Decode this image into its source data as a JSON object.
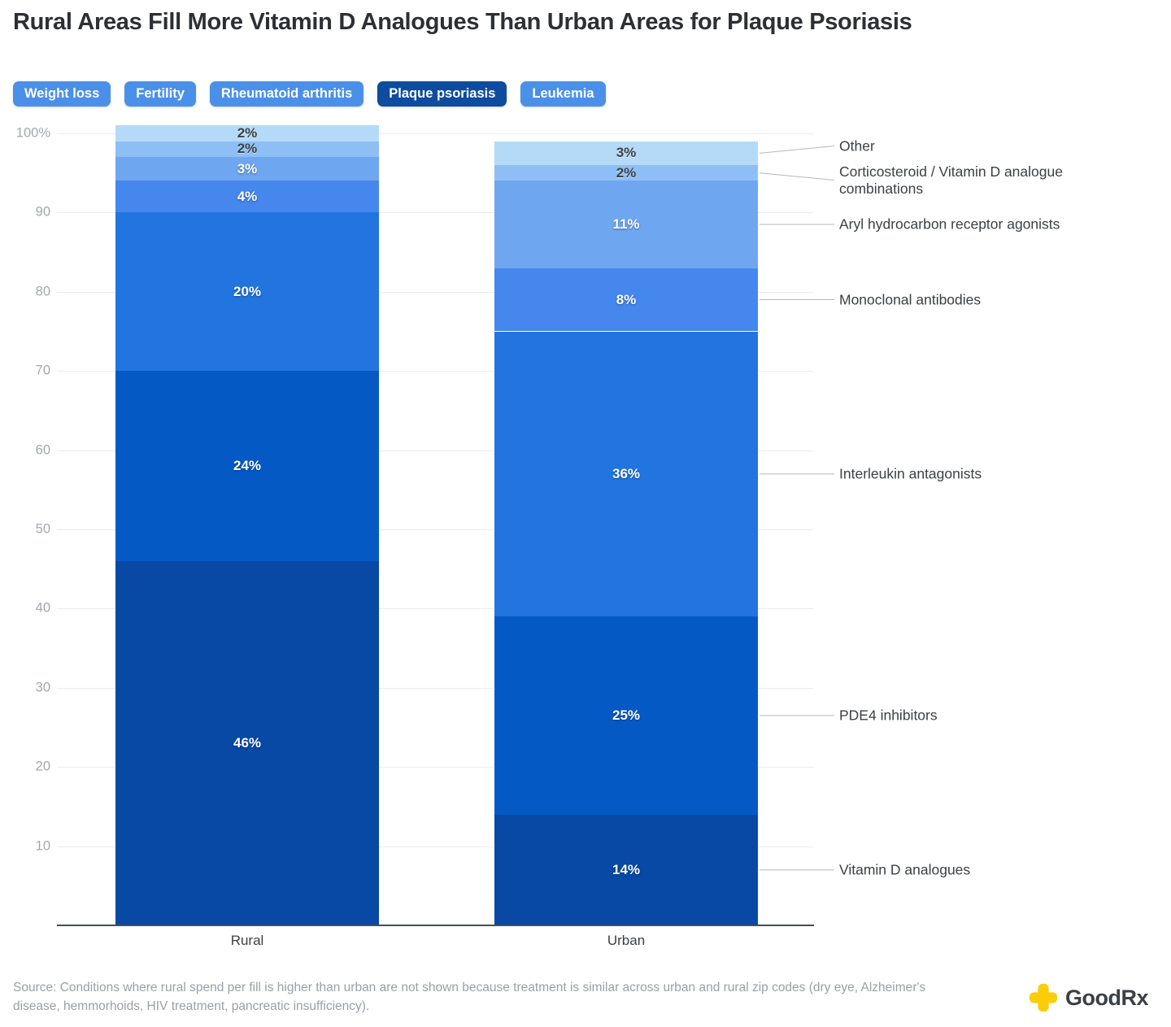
{
  "header": {
    "title": "Rural Areas Fill More Vitamin D Analogues Than Urban Areas for Plaque Psoriasis"
  },
  "tabs": [
    {
      "label": "Weight loss",
      "selected": false
    },
    {
      "label": "Fertility",
      "selected": false
    },
    {
      "label": "Rheumatoid arthritis",
      "selected": false
    },
    {
      "label": "Plaque psoriasis",
      "selected": true
    },
    {
      "label": "Leukemia",
      "selected": false
    }
  ],
  "tab_colors": {
    "default": "#4a90e9",
    "selected": "#0d4c9e"
  },
  "chart_data": {
    "type": "bar",
    "subtype": "stacked-percent-column",
    "x_categories": [
      "Rural",
      "Urban"
    ],
    "value_suffix": "%",
    "y_axis": {
      "ticks": [
        {
          "value": 100,
          "label": "100%"
        },
        {
          "value": 90,
          "label": "90"
        },
        {
          "value": 80,
          "label": "80"
        },
        {
          "value": 70,
          "label": "70"
        },
        {
          "value": 60,
          "label": "60"
        },
        {
          "value": 50,
          "label": "50"
        },
        {
          "value": 40,
          "label": "40"
        },
        {
          "value": 30,
          "label": "30"
        },
        {
          "value": 20,
          "label": "20"
        },
        {
          "value": 10,
          "label": "10"
        }
      ]
    },
    "series": [
      {
        "name": "Vitamin D analogues",
        "color": "#0749a5",
        "label_style": "light",
        "values": [
          46,
          14
        ]
      },
      {
        "name": "PDE4 inhibitors",
        "color": "#0559c4",
        "label_style": "light",
        "values": [
          24,
          25
        ]
      },
      {
        "name": "Interleukin antagonists",
        "color": "#2274de",
        "label_style": "light",
        "values": [
          20,
          36
        ]
      },
      {
        "name": "Monoclonal antibodies",
        "color": "#4587ec",
        "label_style": "light",
        "values": [
          4,
          8
        ]
      },
      {
        "name": "Aryl hydrocarbon receptor agonists",
        "color": "#6fa6f0",
        "label_style": "light",
        "values": [
          3,
          11
        ]
      },
      {
        "name": "Corticosteroid / Vitamin D analogue combinations",
        "color": "#8ebff4",
        "label_style": "dark",
        "values": [
          2,
          2
        ]
      },
      {
        "name": "Other",
        "color": "#b5daf8",
        "label_style": "dark",
        "values": [
          2,
          3
        ]
      }
    ],
    "legend_position": "right-annotations",
    "annotated_category": "Urban"
  },
  "footer": {
    "source_line1": "Source: Conditions where rural spend per fill is higher than urban are not shown because treatment is similar across urban and rural zip codes (dry eye, Alzheimer's",
    "source_line2": "disease, hemmorhoids, HIV treatment, pancreatic insufficiency).",
    "logo_text": "GoodRx",
    "logo_color": "#fbcd08"
  }
}
